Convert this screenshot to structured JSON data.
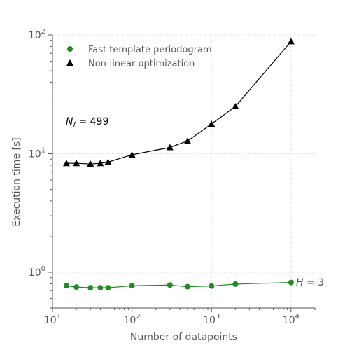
{
  "chart_data": {
    "type": "line",
    "xlabel": "Number of datapoints",
    "ylabel": "Execution time [s]",
    "x_scale": "log",
    "y_scale": "log",
    "xlim": [
      10,
      20000
    ],
    "ylim": [
      0.5,
      100
    ],
    "grid": true,
    "legend_position": "top-left",
    "x_ticks": [
      {
        "value": 10,
        "base": "10",
        "exp": "1"
      },
      {
        "value": 100,
        "base": "10",
        "exp": "2"
      },
      {
        "value": 1000,
        "base": "10",
        "exp": "3"
      },
      {
        "value": 10000,
        "base": "10",
        "exp": "4"
      }
    ],
    "y_ticks": [
      {
        "value": 1,
        "base": "10",
        "exp": "0"
      },
      {
        "value": 10,
        "base": "10",
        "exp": "1"
      },
      {
        "value": 100,
        "base": "10",
        "exp": "2"
      }
    ],
    "series": [
      {
        "name": "Fast template periodogram",
        "marker": "circle",
        "color": "#228b22",
        "x": [
          15,
          20,
          30,
          40,
          50,
          100,
          300,
          500,
          1000,
          2000,
          10000
        ],
        "y": [
          0.77,
          0.75,
          0.74,
          0.74,
          0.74,
          0.77,
          0.78,
          0.755,
          0.765,
          0.795,
          0.82
        ]
      },
      {
        "name": "Non-linear optimization",
        "marker": "triangle",
        "color": "#000000",
        "x": [
          15,
          20,
          30,
          40,
          50,
          100,
          300,
          500,
          1000,
          2000,
          10000
        ],
        "y": [
          8.3,
          8.3,
          8.2,
          8.3,
          8.5,
          9.8,
          11.3,
          12.8,
          17.8,
          25,
          88
        ]
      }
    ],
    "annotations": {
      "nf": {
        "symbol": "N",
        "subscript": "f",
        "value": " = 499"
      },
      "h": {
        "symbol": "H",
        "value": " = 3"
      }
    }
  }
}
